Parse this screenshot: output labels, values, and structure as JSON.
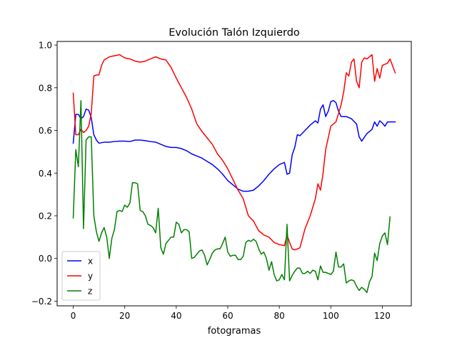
{
  "chart_data": {
    "type": "line",
    "title": "Evolución Talón Izquierdo",
    "xlabel": "fotogramas",
    "ylabel": "",
    "xlim": [
      -6.25,
      131.25
    ],
    "ylim": [
      -0.222,
      1.017
    ],
    "xticks": [
      0,
      20,
      40,
      60,
      80,
      100,
      120
    ],
    "yticks": [
      -0.2,
      0.0,
      0.2,
      0.4,
      0.6,
      0.8,
      1.0
    ],
    "xtick_labels": [
      "0",
      "20",
      "40",
      "60",
      "80",
      "100",
      "120"
    ],
    "ytick_labels": [
      "−0.2",
      "0.0",
      "0.2",
      "0.4",
      "0.6",
      "0.8",
      "1.0"
    ],
    "grid": false,
    "legend_position": "lower-left",
    "series": [
      {
        "name": "x",
        "color": "#0000ff",
        "points": [
          [
            0,
            0.54
          ],
          [
            1,
            0.675
          ],
          [
            2,
            0.675
          ],
          [
            3,
            0.655
          ],
          [
            4,
            0.665
          ],
          [
            5,
            0.7
          ],
          [
            6,
            0.695
          ],
          [
            7,
            0.66
          ],
          [
            8,
            0.58
          ],
          [
            9,
            0.555
          ],
          [
            10,
            0.54
          ],
          [
            12,
            0.545
          ],
          [
            14,
            0.545
          ],
          [
            16,
            0.548
          ],
          [
            18,
            0.55
          ],
          [
            20,
            0.55
          ],
          [
            22,
            0.548
          ],
          [
            24,
            0.555
          ],
          [
            26,
            0.555
          ],
          [
            28,
            0.552
          ],
          [
            30,
            0.548
          ],
          [
            32,
            0.545
          ],
          [
            34,
            0.535
          ],
          [
            36,
            0.525
          ],
          [
            38,
            0.52
          ],
          [
            40,
            0.52
          ],
          [
            42,
            0.515
          ],
          [
            44,
            0.505
          ],
          [
            46,
            0.49
          ],
          [
            48,
            0.48
          ],
          [
            50,
            0.47
          ],
          [
            52,
            0.455
          ],
          [
            54,
            0.44
          ],
          [
            56,
            0.42
          ],
          [
            58,
            0.395
          ],
          [
            60,
            0.365
          ],
          [
            62,
            0.345
          ],
          [
            64,
            0.325
          ],
          [
            66,
            0.315
          ],
          [
            68,
            0.315
          ],
          [
            70,
            0.32
          ],
          [
            72,
            0.34
          ],
          [
            74,
            0.365
          ],
          [
            76,
            0.395
          ],
          [
            78,
            0.42
          ],
          [
            80,
            0.44
          ],
          [
            82,
            0.45
          ],
          [
            83,
            0.395
          ],
          [
            84,
            0.4
          ],
          [
            85,
            0.485
          ],
          [
            86,
            0.52
          ],
          [
            87,
            0.58
          ],
          [
            88,
            0.575
          ],
          [
            90,
            0.6
          ],
          [
            92,
            0.625
          ],
          [
            94,
            0.645
          ],
          [
            95,
            0.635
          ],
          [
            96,
            0.7
          ],
          [
            97,
            0.72
          ],
          [
            98,
            0.665
          ],
          [
            99,
            0.69
          ],
          [
            100,
            0.735
          ],
          [
            101,
            0.74
          ],
          [
            102,
            0.73
          ],
          [
            103,
            0.69
          ],
          [
            104,
            0.665
          ],
          [
            106,
            0.665
          ],
          [
            108,
            0.655
          ],
          [
            110,
            0.63
          ],
          [
            111,
            0.57
          ],
          [
            112,
            0.55
          ],
          [
            114,
            0.585
          ],
          [
            116,
            0.605
          ],
          [
            117,
            0.64
          ],
          [
            118,
            0.62
          ],
          [
            119,
            0.645
          ],
          [
            120,
            0.635
          ],
          [
            121,
            0.62
          ],
          [
            122,
            0.64
          ],
          [
            124,
            0.64
          ],
          [
            125,
            0.64
          ]
        ]
      },
      {
        "name": "y",
        "color": "#ff0000",
        "points": [
          [
            0,
            0.775
          ],
          [
            1,
            0.58
          ],
          [
            2,
            0.58
          ],
          [
            3,
            0.605
          ],
          [
            4,
            0.59
          ],
          [
            5,
            0.6
          ],
          [
            6,
            0.62
          ],
          [
            7,
            0.68
          ],
          [
            8,
            0.855
          ],
          [
            9,
            0.86
          ],
          [
            10,
            0.86
          ],
          [
            11,
            0.905
          ],
          [
            12,
            0.93
          ],
          [
            14,
            0.945
          ],
          [
            16,
            0.95
          ],
          [
            18,
            0.955
          ],
          [
            20,
            0.94
          ],
          [
            22,
            0.935
          ],
          [
            24,
            0.925
          ],
          [
            26,
            0.92
          ],
          [
            28,
            0.925
          ],
          [
            30,
            0.935
          ],
          [
            32,
            0.945
          ],
          [
            34,
            0.935
          ],
          [
            36,
            0.93
          ],
          [
            38,
            0.895
          ],
          [
            40,
            0.845
          ],
          [
            42,
            0.8
          ],
          [
            44,
            0.755
          ],
          [
            46,
            0.7
          ],
          [
            48,
            0.63
          ],
          [
            50,
            0.595
          ],
          [
            52,
            0.565
          ],
          [
            54,
            0.535
          ],
          [
            56,
            0.49
          ],
          [
            58,
            0.46
          ],
          [
            60,
            0.42
          ],
          [
            62,
            0.37
          ],
          [
            64,
            0.32
          ],
          [
            66,
            0.28
          ],
          [
            68,
            0.2
          ],
          [
            70,
            0.175
          ],
          [
            72,
            0.13
          ],
          [
            74,
            0.11
          ],
          [
            76,
            0.1
          ],
          [
            78,
            0.075
          ],
          [
            80,
            0.065
          ],
          [
            82,
            0.06
          ],
          [
            83,
            0.11
          ],
          [
            84,
            0.075
          ],
          [
            85,
            0.045
          ],
          [
            86,
            0.04
          ],
          [
            88,
            0.05
          ],
          [
            90,
            0.14
          ],
          [
            92,
            0.2
          ],
          [
            94,
            0.28
          ],
          [
            95,
            0.35
          ],
          [
            96,
            0.32
          ],
          [
            97,
            0.4
          ],
          [
            98,
            0.51
          ],
          [
            100,
            0.62
          ],
          [
            102,
            0.64
          ],
          [
            104,
            0.72
          ],
          [
            105,
            0.78
          ],
          [
            106,
            0.87
          ],
          [
            107,
            0.855
          ],
          [
            108,
            0.92
          ],
          [
            109,
            0.935
          ],
          [
            110,
            0.83
          ],
          [
            111,
            0.8
          ],
          [
            112,
            0.92
          ],
          [
            113,
            0.94
          ],
          [
            114,
            0.935
          ],
          [
            116,
            0.955
          ],
          [
            117,
            0.83
          ],
          [
            118,
            0.89
          ],
          [
            119,
            0.845
          ],
          [
            120,
            0.905
          ],
          [
            122,
            0.915
          ],
          [
            123,
            0.935
          ],
          [
            125,
            0.87
          ]
        ]
      },
      {
        "name": "z",
        "color": "#008000",
        "points": [
          [
            0,
            0.19
          ],
          [
            1,
            0.51
          ],
          [
            2,
            0.43
          ],
          [
            3,
            0.74
          ],
          [
            4,
            0.14
          ],
          [
            5,
            0.555
          ],
          [
            6,
            0.57
          ],
          [
            7,
            0.57
          ],
          [
            8,
            0.2
          ],
          [
            9,
            0.125
          ],
          [
            10,
            0.08
          ],
          [
            11,
            0.12
          ],
          [
            12,
            0.145
          ],
          [
            13,
            0.1
          ],
          [
            14,
            0.0
          ],
          [
            15,
            0.095
          ],
          [
            16,
            0.135
          ],
          [
            17,
            0.22
          ],
          [
            18,
            0.225
          ],
          [
            19,
            0.22
          ],
          [
            20,
            0.25
          ],
          [
            21,
            0.24
          ],
          [
            22,
            0.26
          ],
          [
            23,
            0.355
          ],
          [
            24,
            0.355
          ],
          [
            25,
            0.35
          ],
          [
            26,
            0.225
          ],
          [
            27,
            0.22
          ],
          [
            28,
            0.2
          ],
          [
            29,
            0.16
          ],
          [
            30,
            0.155
          ],
          [
            31,
            0.145
          ],
          [
            32,
            0.12
          ],
          [
            33,
            0.235
          ],
          [
            34,
            0.05
          ],
          [
            35,
            0.02
          ],
          [
            36,
            0.07
          ],
          [
            37,
            0.085
          ],
          [
            38,
            0.1
          ],
          [
            39,
            0.1
          ],
          [
            40,
            0.17
          ],
          [
            41,
            0.16
          ],
          [
            42,
            0.12
          ],
          [
            43,
            0.135
          ],
          [
            44,
            0.135
          ],
          [
            45,
            0.125
          ],
          [
            46,
            0.0
          ],
          [
            47,
            0.005
          ],
          [
            48,
            0.02
          ],
          [
            49,
            0.035
          ],
          [
            50,
            0.04
          ],
          [
            51,
            0.015
          ],
          [
            52,
            -0.03
          ],
          [
            53,
            -0.005
          ],
          [
            54,
            0.025
          ],
          [
            55,
            0.04
          ],
          [
            56,
            0.045
          ],
          [
            57,
            0.045
          ],
          [
            58,
            0.07
          ],
          [
            59,
            0.1
          ],
          [
            60,
            0.03
          ],
          [
            61,
            0.01
          ],
          [
            62,
            0.015
          ],
          [
            63,
            0.015
          ],
          [
            64,
            -0.005
          ],
          [
            65,
            -0.005
          ],
          [
            66,
            0.01
          ],
          [
            67,
            0.075
          ],
          [
            68,
            0.085
          ],
          [
            69,
            0.08
          ],
          [
            70,
            0.09
          ],
          [
            71,
            0.08
          ],
          [
            72,
            0.045
          ],
          [
            73,
            0.02
          ],
          [
            74,
            0.03
          ],
          [
            75,
            0.0
          ],
          [
            76,
            -0.055
          ],
          [
            77,
            -0.015
          ],
          [
            78,
            -0.075
          ],
          [
            79,
            -0.105
          ],
          [
            80,
            -0.1
          ],
          [
            81,
            -0.075
          ],
          [
            82,
            -0.1
          ],
          [
            83,
            0.16
          ],
          [
            84,
            -0.105
          ],
          [
            85,
            -0.08
          ],
          [
            86,
            -0.06
          ],
          [
            87,
            -0.045
          ],
          [
            88,
            -0.045
          ],
          [
            89,
            -0.07
          ],
          [
            90,
            -0.07
          ],
          [
            91,
            -0.06
          ],
          [
            92,
            -0.07
          ],
          [
            93,
            -0.055
          ],
          [
            94,
            -0.06
          ],
          [
            95,
            -0.1
          ],
          [
            96,
            -0.035
          ],
          [
            97,
            -0.065
          ],
          [
            98,
            -0.065
          ],
          [
            99,
            -0.07
          ],
          [
            100,
            -0.075
          ],
          [
            101,
            -0.06
          ],
          [
            102,
            0.03
          ],
          [
            103,
            -0.04
          ],
          [
            104,
            -0.04
          ],
          [
            105,
            -0.025
          ],
          [
            106,
            -0.115
          ],
          [
            107,
            -0.105
          ],
          [
            108,
            -0.1
          ],
          [
            109,
            -0.105
          ],
          [
            110,
            -0.13
          ],
          [
            111,
            -0.15
          ],
          [
            112,
            -0.135
          ],
          [
            113,
            -0.145
          ],
          [
            114,
            -0.16
          ],
          [
            115,
            -0.11
          ],
          [
            116,
            -0.085
          ],
          [
            117,
            0.025
          ],
          [
            118,
            -0.01
          ],
          [
            119,
            0.07
          ],
          [
            120,
            0.105
          ],
          [
            121,
            0.12
          ],
          [
            122,
            0.065
          ],
          [
            123,
            0.195
          ]
        ]
      }
    ]
  }
}
